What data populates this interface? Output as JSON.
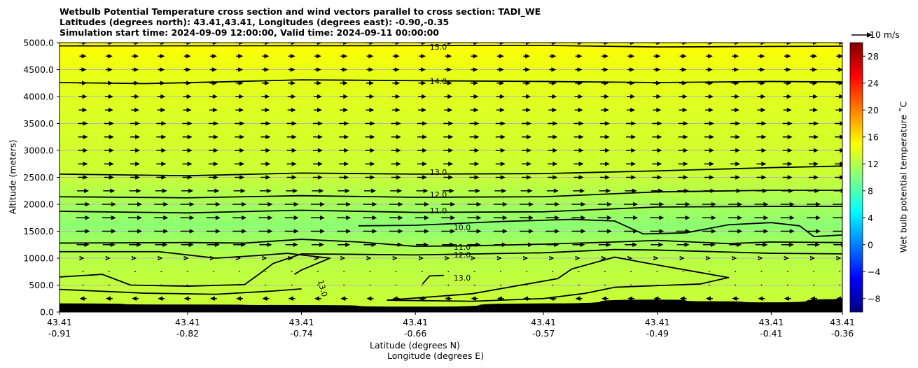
{
  "chart_data": {
    "type": "heatmap",
    "title_lines": [
      "Wetbulb Potential Temperature cross section and wind vectors parallel to cross section: TADI_WE",
      "Latitudes (degrees north): 43.41,43.41, Longitudes (degrees east): -0.90,-0.35",
      "Simulation start time: 2024-09-09 12:00:00, Valid time: 2024-09-11 00:00:00"
    ],
    "ylabel": "Altitude (meters)",
    "xlabel_line1": "Latitude (degrees N)",
    "xlabel_line2": "Longitude (degrees E)",
    "ylim": [
      0,
      5000
    ],
    "yticks": [
      "0.0",
      "500.0",
      "1000.0",
      "1500.0",
      "2000.0",
      "2500.0",
      "3000.0",
      "3500.0",
      "4000.0",
      "4500.0",
      "5000.0"
    ],
    "xticks": [
      {
        "lat": "43.41",
        "lon": "-0.91"
      },
      {
        "lat": "43.41",
        "lon": "-0.82"
      },
      {
        "lat": "43.41",
        "lon": "-0.74"
      },
      {
        "lat": "43.41",
        "lon": "-0.66"
      },
      {
        "lat": "43.41",
        "lon": "-0.57"
      },
      {
        "lat": "43.41",
        "lon": "-0.49"
      },
      {
        "lat": "43.41",
        "lon": "-0.41"
      },
      {
        "lat": "43.41",
        "lon": "-0.36"
      }
    ],
    "colorbar": {
      "label": "Wet bulb potential temperature $^\\circ$C",
      "label_display": "Wet bulb potential temperature ˚C",
      "range": [
        -10,
        30
      ],
      "ticks": [
        "−8",
        "−4",
        "0",
        "4",
        "8",
        "12",
        "16",
        "20",
        "24",
        "28"
      ],
      "colormap": "jet"
    },
    "quiver_key": "10 m/s",
    "contour_labels": [
      {
        "text": "15.0",
        "level": 15
      },
      {
        "text": "14.0",
        "level": 14
      },
      {
        "text": "13.0",
        "level": 13
      },
      {
        "text": "12.0",
        "level": 12
      },
      {
        "text": "11.0",
        "level": 11
      },
      {
        "text": "10.0",
        "level": 10
      },
      {
        "text": "11.0",
        "level": 11
      },
      {
        "text": "12.0",
        "level": 12
      },
      {
        "text": "13.0",
        "level": 13
      },
      {
        "text": "13.0",
        "level": 13
      }
    ],
    "field_profile": [
      {
        "alt": 0,
        "value": 13.0
      },
      {
        "alt": 1000,
        "value": 12.2
      },
      {
        "alt": 1600,
        "value": 10.5
      },
      {
        "alt": 2200,
        "value": 12.0
      },
      {
        "alt": 2600,
        "value": 13.0
      },
      {
        "alt": 4300,
        "value": 14.0
      },
      {
        "alt": 5000,
        "value": 15.0
      }
    ],
    "contours": [
      {
        "level": 15,
        "points": [
          [
            -0.91,
            4940
          ],
          [
            -0.66,
            4945
          ],
          [
            -0.57,
            4950
          ],
          [
            -0.49,
            4920
          ],
          [
            -0.41,
            4930
          ],
          [
            -0.36,
            4935
          ]
        ]
      },
      {
        "level": 14,
        "points": [
          [
            -0.91,
            4260
          ],
          [
            -0.85,
            4240
          ],
          [
            -0.8,
            4270
          ],
          [
            -0.74,
            4310
          ],
          [
            -0.66,
            4295
          ],
          [
            -0.57,
            4280
          ],
          [
            -0.49,
            4260
          ],
          [
            -0.41,
            4280
          ],
          [
            -0.36,
            4270
          ]
        ]
      },
      {
        "level": 13,
        "points": [
          [
            -0.91,
            2560
          ],
          [
            -0.82,
            2530
          ],
          [
            -0.74,
            2580
          ],
          [
            -0.66,
            2560
          ],
          [
            -0.57,
            2570
          ],
          [
            -0.49,
            2620
          ],
          [
            -0.41,
            2680
          ],
          [
            -0.36,
            2710
          ]
        ]
      },
      {
        "level": 12,
        "points": [
          [
            -0.91,
            2140
          ],
          [
            -0.82,
            2120
          ],
          [
            -0.74,
            2160
          ],
          [
            -0.66,
            2130
          ],
          [
            -0.57,
            2140
          ],
          [
            -0.49,
            2230
          ],
          [
            -0.41,
            2260
          ],
          [
            -0.36,
            2260
          ]
        ]
      },
      {
        "level": 11,
        "points": [
          [
            -0.91,
            1870
          ],
          [
            -0.82,
            1840
          ],
          [
            -0.74,
            1890
          ],
          [
            -0.66,
            1850
          ],
          [
            -0.57,
            1860
          ],
          [
            -0.49,
            1950
          ],
          [
            -0.41,
            1960
          ],
          [
            -0.36,
            1960
          ]
        ]
      },
      {
        "level": 10,
        "points": [
          [
            -0.7,
            1600
          ],
          [
            -0.66,
            1610
          ],
          [
            -0.6,
            1680
          ],
          [
            -0.55,
            1720
          ],
          [
            -0.52,
            1690
          ],
          [
            -0.5,
            1450
          ],
          [
            -0.47,
            1470
          ],
          [
            -0.44,
            1620
          ],
          [
            -0.41,
            1660
          ],
          [
            -0.39,
            1600
          ],
          [
            -0.38,
            1400
          ],
          [
            -0.36,
            1430
          ]
        ]
      },
      {
        "level": 11,
        "points": [
          [
            -0.91,
            1280
          ],
          [
            -0.82,
            1290
          ],
          [
            -0.78,
            1280
          ],
          [
            -0.74,
            1350
          ],
          [
            -0.7,
            1300
          ],
          [
            -0.66,
            1220
          ],
          [
            -0.62,
            1230
          ],
          [
            -0.57,
            1260
          ],
          [
            -0.52,
            1300
          ],
          [
            -0.49,
            1330
          ],
          [
            -0.44,
            1270
          ],
          [
            -0.41,
            1300
          ],
          [
            -0.36,
            1290
          ]
        ]
      },
      {
        "level": 12,
        "points": [
          [
            -0.91,
            1120
          ],
          [
            -0.84,
            1120
          ],
          [
            -0.8,
            1000
          ],
          [
            -0.77,
            1050
          ],
          [
            -0.75,
            1090
          ],
          [
            -0.72,
            1000
          ],
          [
            -0.74,
            780
          ],
          [
            -0.745,
            700
          ]
        ]
      },
      {
        "level": 12,
        "points": [
          [
            -0.91,
            650
          ],
          [
            -0.88,
            700
          ],
          [
            -0.86,
            500
          ],
          [
            -0.82,
            480
          ],
          [
            -0.78,
            510
          ],
          [
            -0.77,
            700
          ],
          [
            -0.76,
            900
          ],
          [
            -0.74,
            1080
          ],
          [
            -0.66,
            1060
          ],
          [
            -0.57,
            1100
          ],
          [
            -0.52,
            1160
          ],
          [
            -0.49,
            1150
          ],
          [
            -0.41,
            1090
          ],
          [
            -0.36,
            1080
          ]
        ]
      },
      {
        "level": 13,
        "points": [
          [
            -0.91,
            420
          ],
          [
            -0.85,
            350
          ],
          [
            -0.8,
            330
          ],
          [
            -0.76,
            390
          ],
          [
            -0.74,
            430
          ]
        ]
      },
      {
        "level": 13,
        "points": [
          [
            -0.68,
            220
          ],
          [
            -0.62,
            340
          ],
          [
            -0.59,
            480
          ],
          [
            -0.56,
            620
          ],
          [
            -0.55,
            800
          ],
          [
            -0.52,
            1020
          ],
          [
            -0.5,
            920
          ],
          [
            -0.47,
            780
          ],
          [
            -0.44,
            640
          ],
          [
            -0.46,
            520
          ],
          [
            -0.49,
            490
          ],
          [
            -0.52,
            460
          ],
          [
            -0.54,
            350
          ],
          [
            -0.57,
            250
          ],
          [
            -0.62,
            200
          ],
          [
            -0.68,
            220
          ]
        ]
      },
      {
        "level": 13,
        "points": [
          [
            -0.655,
            520
          ],
          [
            -0.65,
            670
          ],
          [
            -0.64,
            680
          ]
        ]
      }
    ],
    "terrain": [
      [
        -0.91,
        160
      ],
      [
        -0.82,
        140
      ],
      [
        -0.74,
        130
      ],
      [
        -0.66,
        100
      ],
      [
        -0.57,
        160
      ],
      [
        -0.49,
        230
      ],
      [
        -0.45,
        200
      ],
      [
        -0.41,
        180
      ],
      [
        -0.36,
        240
      ]
    ],
    "wind_profile": [
      {
        "alt": 250,
        "u": -0.5
      },
      {
        "alt": 500,
        "u": -0.1
      },
      {
        "alt": 750,
        "u": 0.05
      },
      {
        "alt": 1000,
        "u": 0.2
      },
      {
        "alt": 1250,
        "u": 0.9
      },
      {
        "alt": 1500,
        "u": 1.0
      },
      {
        "alt": 1750,
        "u": 1.0
      },
      {
        "alt": 2000,
        "u": 1.0
      },
      {
        "alt": 2250,
        "u": 0.85
      },
      {
        "alt": 2500,
        "u": 0.7
      },
      {
        "alt": 2750,
        "u": 0.7
      },
      {
        "alt": 3000,
        "u": 0.7
      },
      {
        "alt": 3250,
        "u": 0.7
      },
      {
        "alt": 3500,
        "u": 0.7
      },
      {
        "alt": 3750,
        "u": 0.6
      },
      {
        "alt": 4000,
        "u": 0.6
      },
      {
        "alt": 4250,
        "u": 0.55
      },
      {
        "alt": 4500,
        "u": 0.5
      },
      {
        "alt": 4750,
        "u": 0.5
      },
      {
        "alt": 5000,
        "u": 0.6
      }
    ]
  }
}
